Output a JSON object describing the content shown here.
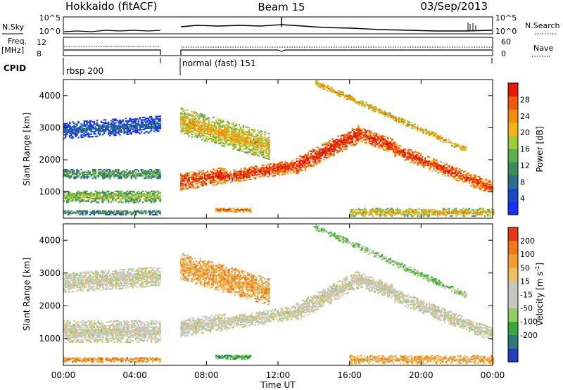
{
  "header": {
    "station": "Hokkaido (fitACF)",
    "beam": "Beam 15",
    "date": "03/Sep/2013"
  },
  "top_panels": {
    "nsky_label": "N.Sky",
    "nsky_ticks": [
      "10^5",
      "10^0"
    ],
    "nsearch_label": "N.Search",
    "nsearch_ticks": [
      "10^5",
      "10^0"
    ],
    "freq_label": "Freq.",
    "freq_unit": "[MHz]",
    "freq_ticks": [
      "12",
      "8"
    ],
    "nave_label": "Nave",
    "nave_ticks": [
      "60",
      "0"
    ],
    "cpid_label": "CPID",
    "cpid_segments": [
      {
        "name": "rbsp 200",
        "start": 0.0,
        "end": 5.5
      },
      {
        "name": "normal (fast) 151",
        "start": 6.5,
        "end": 24.0
      }
    ]
  },
  "chart_data": [
    {
      "type": "heatmap",
      "title": "",
      "xlabel": "Time UT",
      "ylabel": "Slant Range [km]",
      "xlim": [
        0,
        24
      ],
      "ylim": [
        180,
        4500
      ],
      "x_ticks": [
        "00:00",
        "04:00",
        "08:00",
        "12:00",
        "16:00",
        "20:00",
        "00:00"
      ],
      "y_ticks": [
        "1000",
        "2000",
        "3000",
        "4000"
      ],
      "colorbar": {
        "label": "Power [dB]",
        "range": [
          0,
          32
        ],
        "ticks": [
          "4",
          "8",
          "12",
          "16",
          "20",
          "24",
          "28"
        ],
        "colors": [
          "#1830ff",
          "#1848c8",
          "#2e6e8a",
          "#3c8a5a",
          "#5cb04a",
          "#9ccc3c",
          "#f0b418",
          "#f08c10",
          "#f05a0a",
          "#e81808"
        ]
      },
      "data_gap_hours": [
        5.5,
        6.5
      ],
      "bands": [
        {
          "t_start": 0.0,
          "t_end": 5.5,
          "r_start": 850,
          "r_end": 850,
          "width": 380,
          "level": 0.45
        },
        {
          "t_start": 0.0,
          "t_end": 5.5,
          "r_start": 1550,
          "r_end": 1550,
          "width": 280,
          "level": 0.35
        },
        {
          "t_start": 0.0,
          "t_end": 5.5,
          "r_start": 2900,
          "r_end": 3100,
          "width": 500,
          "level": 0.12
        },
        {
          "t_start": 0.0,
          "t_end": 5.5,
          "r_start": 350,
          "r_end": 350,
          "width": 150,
          "level": 0.3
        },
        {
          "t_start": 6.5,
          "t_end": 9.0,
          "r_start": 1300,
          "r_end": 1500,
          "width": 500,
          "level": 0.85
        },
        {
          "t_start": 9.0,
          "t_end": 13.0,
          "r_start": 1450,
          "r_end": 1800,
          "width": 400,
          "level": 0.85
        },
        {
          "t_start": 13.0,
          "t_end": 16.5,
          "r_start": 1800,
          "r_end": 2800,
          "width": 550,
          "level": 0.88
        },
        {
          "t_start": 16.5,
          "t_end": 18.5,
          "r_start": 2800,
          "r_end": 2400,
          "width": 450,
          "level": 0.85
        },
        {
          "t_start": 18.5,
          "t_end": 24.0,
          "r_start": 2300,
          "r_end": 1100,
          "width": 400,
          "level": 0.82
        },
        {
          "t_start": 6.5,
          "t_end": 11.5,
          "r_start": 3200,
          "r_end": 2400,
          "width": 800,
          "level": 0.6
        },
        {
          "t_start": 14.0,
          "t_end": 22.5,
          "r_start": 4400,
          "r_end": 2300,
          "width": 160,
          "level": 0.65
        },
        {
          "t_start": 8.5,
          "t_end": 10.5,
          "r_start": 430,
          "r_end": 430,
          "width": 150,
          "level": 0.72
        },
        {
          "t_start": 16.0,
          "t_end": 24.0,
          "r_start": 350,
          "r_end": 350,
          "width": 230,
          "level": 0.6
        }
      ]
    },
    {
      "type": "heatmap",
      "title": "",
      "xlabel": "Time UT",
      "ylabel": "Slant Range [km]",
      "xlim": [
        0,
        24
      ],
      "ylim": [
        180,
        4500
      ],
      "x_ticks": [
        "00:00",
        "04:00",
        "08:00",
        "12:00",
        "16:00",
        "20:00",
        "00:00"
      ],
      "y_ticks": [
        "1000",
        "2000",
        "3000",
        "4000"
      ],
      "colorbar": {
        "label": "Velocity [m s-1]",
        "range": [
          -250,
          250
        ],
        "ticks": [
          "200",
          "100",
          "50",
          "15",
          "-15",
          "-50",
          "-100",
          "-200"
        ],
        "colors": [
          "#2040c0",
          "#2a7a7a",
          "#38a838",
          "#90d060",
          "#c8c8c0",
          "#c8c8c0",
          "#f0c060",
          "#f0a030",
          "#f07818",
          "#e83818"
        ]
      },
      "data_gap_hours": [
        5.5,
        6.5
      ],
      "bands": [
        {
          "t_start": 0.0,
          "t_end": 5.5,
          "r_start": 1200,
          "r_end": 1200,
          "width": 650,
          "level": 0.5
        },
        {
          "t_start": 0.0,
          "t_end": 5.5,
          "r_start": 2700,
          "r_end": 2900,
          "width": 600,
          "level": 0.5
        },
        {
          "t_start": 0.0,
          "t_end": 5.5,
          "r_start": 350,
          "r_end": 350,
          "width": 150,
          "level": 0.78
        },
        {
          "t_start": 6.5,
          "t_end": 9.0,
          "r_start": 1300,
          "r_end": 1500,
          "width": 500,
          "level": 0.5
        },
        {
          "t_start": 9.0,
          "t_end": 13.0,
          "r_start": 1450,
          "r_end": 1800,
          "width": 400,
          "level": 0.5
        },
        {
          "t_start": 13.0,
          "t_end": 16.5,
          "r_start": 1800,
          "r_end": 2800,
          "width": 550,
          "level": 0.5
        },
        {
          "t_start": 16.5,
          "t_end": 18.5,
          "r_start": 2800,
          "r_end": 2400,
          "width": 450,
          "level": 0.5
        },
        {
          "t_start": 18.5,
          "t_end": 24.0,
          "r_start": 2300,
          "r_end": 1100,
          "width": 400,
          "level": 0.5
        },
        {
          "t_start": 6.5,
          "t_end": 11.5,
          "r_start": 3200,
          "r_end": 2400,
          "width": 800,
          "level": 0.72
        },
        {
          "t_start": 14.0,
          "t_end": 22.5,
          "r_start": 4400,
          "r_end": 2300,
          "width": 160,
          "level": 0.36
        },
        {
          "t_start": 8.5,
          "t_end": 10.5,
          "r_start": 430,
          "r_end": 430,
          "width": 150,
          "level": 0.25
        },
        {
          "t_start": 16.0,
          "t_end": 24.0,
          "r_start": 350,
          "r_end": 350,
          "width": 230,
          "level": 0.72
        }
      ]
    }
  ]
}
